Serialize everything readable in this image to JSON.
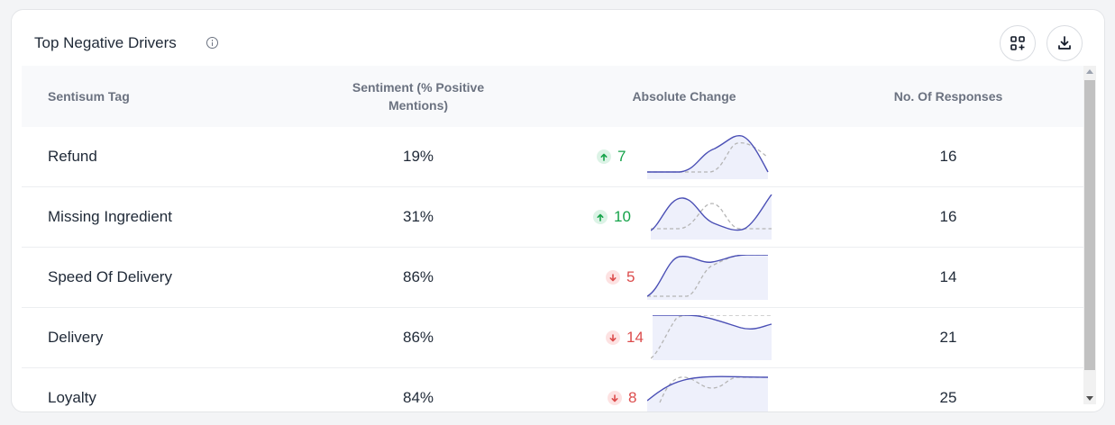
{
  "widget": {
    "title": "Top Negative Drivers",
    "icons": [
      "info-icon",
      "grid-add-icon",
      "download-icon"
    ]
  },
  "table": {
    "columns": {
      "tag": "Sentisum Tag",
      "sentiment": "Sentiment (% Positive Mentions)",
      "absolute_change": "Absolute Change",
      "responses": "No. Of Responses"
    },
    "rows": [
      {
        "tag": "Refund",
        "sentiment": "19%",
        "direction": "up",
        "change": "7",
        "responses": "16"
      },
      {
        "tag": "Missing Ingredient",
        "sentiment": "31%",
        "direction": "up",
        "change": "10",
        "responses": "16"
      },
      {
        "tag": "Speed Of Delivery",
        "sentiment": "86%",
        "direction": "down",
        "change": "5",
        "responses": "14"
      },
      {
        "tag": "Delivery",
        "sentiment": "86%",
        "direction": "down",
        "change": "14",
        "responses": "21"
      },
      {
        "tag": "Loyalty",
        "sentiment": "84%",
        "direction": "down",
        "change": "8",
        "responses": "25"
      }
    ]
  },
  "colors": {
    "up": "#16a34a",
    "down": "#dc4c4c",
    "sparkline": "#4a4fb5",
    "sparkline_previous": "#b5b5b5"
  }
}
